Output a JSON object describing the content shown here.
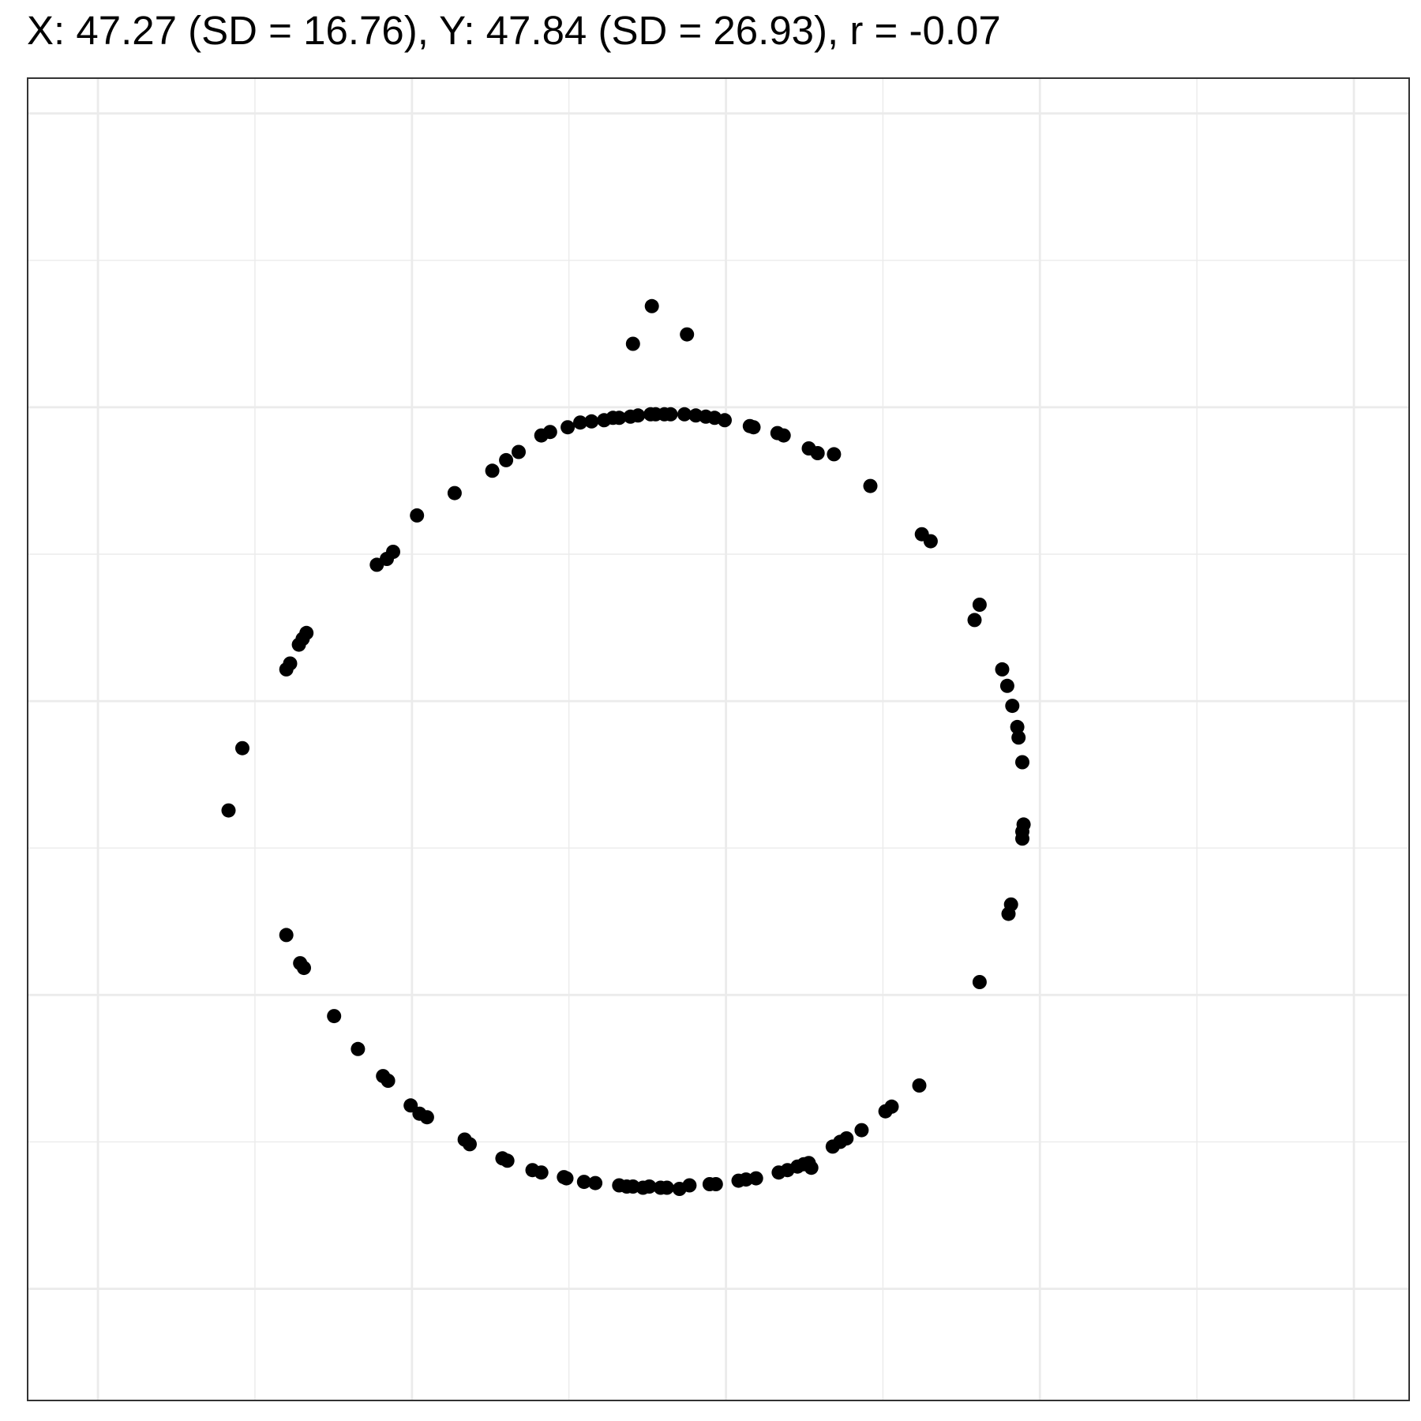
{
  "chart_data": {
    "type": "scatter",
    "title": "X: 47.27 (SD = 16.76), Y: 47.84 (SD = 26.93), r = -0.07",
    "xlabel": "",
    "ylabel": "",
    "xlim": [
      -5.6,
      104.4
    ],
    "ylim": [
      -9.5,
      103.0
    ],
    "grid": true,
    "axis_ticks_labeled": false,
    "colors": {
      "points": "#000000",
      "grid": "#ebebeb",
      "border": "#333333",
      "background": "#ffffff"
    },
    "points": [
      {
        "x": 44.1,
        "y": 83.6
      },
      {
        "x": 42.6,
        "y": 80.4
      },
      {
        "x": 46.9,
        "y": 81.2
      },
      {
        "x": 44.4,
        "y": 74.4
      },
      {
        "x": 44.0,
        "y": 74.4
      },
      {
        "x": 45.1,
        "y": 74.4
      },
      {
        "x": 45.6,
        "y": 74.4
      },
      {
        "x": 43.0,
        "y": 74.3
      },
      {
        "x": 42.4,
        "y": 74.2
      },
      {
        "x": 41.5,
        "y": 74.1
      },
      {
        "x": 41.0,
        "y": 74.1
      },
      {
        "x": 40.3,
        "y": 73.9
      },
      {
        "x": 39.3,
        "y": 73.8
      },
      {
        "x": 38.4,
        "y": 73.7
      },
      {
        "x": 37.4,
        "y": 73.3
      },
      {
        "x": 36.0,
        "y": 72.9
      },
      {
        "x": 35.3,
        "y": 72.6
      },
      {
        "x": 33.5,
        "y": 71.2
      },
      {
        "x": 32.5,
        "y": 70.5
      },
      {
        "x": 31.4,
        "y": 69.6
      },
      {
        "x": 28.4,
        "y": 67.7
      },
      {
        "x": 25.4,
        "y": 65.8
      },
      {
        "x": 23.5,
        "y": 62.7
      },
      {
        "x": 23.0,
        "y": 62.1
      },
      {
        "x": 22.2,
        "y": 61.6
      },
      {
        "x": 16.6,
        "y": 55.8
      },
      {
        "x": 16.3,
        "y": 55.3
      },
      {
        "x": 16.0,
        "y": 54.8
      },
      {
        "x": 15.3,
        "y": 53.2
      },
      {
        "x": 15.0,
        "y": 52.7
      },
      {
        "x": 11.5,
        "y": 46.0
      },
      {
        "x": 10.4,
        "y": 40.7
      },
      {
        "x": 15.0,
        "y": 30.1
      },
      {
        "x": 16.1,
        "y": 27.7
      },
      {
        "x": 16.4,
        "y": 27.3
      },
      {
        "x": 18.8,
        "y": 23.2
      },
      {
        "x": 20.7,
        "y": 20.4
      },
      {
        "x": 22.7,
        "y": 18.1
      },
      {
        "x": 23.1,
        "y": 17.7
      },
      {
        "x": 24.9,
        "y": 15.6
      },
      {
        "x": 25.6,
        "y": 14.9
      },
      {
        "x": 26.2,
        "y": 14.6
      },
      {
        "x": 29.2,
        "y": 12.7
      },
      {
        "x": 29.6,
        "y": 12.3
      },
      {
        "x": 32.2,
        "y": 11.1
      },
      {
        "x": 32.6,
        "y": 10.9
      },
      {
        "x": 34.6,
        "y": 10.1
      },
      {
        "x": 35.3,
        "y": 9.9
      },
      {
        "x": 37.1,
        "y": 9.5
      },
      {
        "x": 37.3,
        "y": 9.4
      },
      {
        "x": 38.7,
        "y": 9.1
      },
      {
        "x": 39.6,
        "y": 9.0
      },
      {
        "x": 41.5,
        "y": 8.8
      },
      {
        "x": 42.1,
        "y": 8.7
      },
      {
        "x": 42.6,
        "y": 8.7
      },
      {
        "x": 43.4,
        "y": 8.6
      },
      {
        "x": 43.9,
        "y": 8.7
      },
      {
        "x": 44.8,
        "y": 8.6
      },
      {
        "x": 45.3,
        "y": 8.6
      },
      {
        "x": 46.3,
        "y": 8.5
      },
      {
        "x": 47.1,
        "y": 8.8
      },
      {
        "x": 48.7,
        "y": 8.9
      },
      {
        "x": 49.2,
        "y": 8.9
      },
      {
        "x": 51.0,
        "y": 9.2
      },
      {
        "x": 51.6,
        "y": 9.3
      },
      {
        "x": 52.4,
        "y": 9.4
      },
      {
        "x": 54.2,
        "y": 9.9
      },
      {
        "x": 54.9,
        "y": 10.1
      },
      {
        "x": 55.7,
        "y": 10.4
      },
      {
        "x": 56.2,
        "y": 10.6
      },
      {
        "x": 56.6,
        "y": 10.7
      },
      {
        "x": 56.8,
        "y": 10.3
      },
      {
        "x": 58.5,
        "y": 12.1
      },
      {
        "x": 59.1,
        "y": 12.5
      },
      {
        "x": 59.6,
        "y": 12.8
      },
      {
        "x": 60.8,
        "y": 13.5
      },
      {
        "x": 62.7,
        "y": 15.1
      },
      {
        "x": 63.2,
        "y": 15.5
      },
      {
        "x": 65.4,
        "y": 17.3
      },
      {
        "x": 70.2,
        "y": 26.1
      },
      {
        "x": 72.5,
        "y": 31.9
      },
      {
        "x": 72.7,
        "y": 32.7
      },
      {
        "x": 73.6,
        "y": 38.3
      },
      {
        "x": 73.6,
        "y": 38.9
      },
      {
        "x": 73.7,
        "y": 39.5
      },
      {
        "x": 73.6,
        "y": 44.8
      },
      {
        "x": 73.3,
        "y": 46.9
      },
      {
        "x": 73.2,
        "y": 47.8
      },
      {
        "x": 72.8,
        "y": 49.6
      },
      {
        "x": 72.4,
        "y": 51.3
      },
      {
        "x": 72.0,
        "y": 52.7
      },
      {
        "x": 69.8,
        "y": 56.9
      },
      {
        "x": 70.2,
        "y": 58.2
      },
      {
        "x": 66.3,
        "y": 63.6
      },
      {
        "x": 65.6,
        "y": 64.2
      },
      {
        "x": 61.5,
        "y": 68.3
      },
      {
        "x": 58.6,
        "y": 71.0
      },
      {
        "x": 57.3,
        "y": 71.1
      },
      {
        "x": 56.6,
        "y": 71.5
      },
      {
        "x": 54.6,
        "y": 72.6
      },
      {
        "x": 54.1,
        "y": 72.8
      },
      {
        "x": 52.2,
        "y": 73.3
      },
      {
        "x": 51.9,
        "y": 73.4
      },
      {
        "x": 49.9,
        "y": 73.9
      },
      {
        "x": 49.1,
        "y": 74.1
      },
      {
        "x": 48.4,
        "y": 74.2
      },
      {
        "x": 47.6,
        "y": 74.3
      },
      {
        "x": 46.7,
        "y": 74.4
      }
    ],
    "x_gridlines": [
      0,
      25,
      50,
      75,
      100
    ],
    "y_gridlines": [
      0,
      25,
      50,
      75,
      100
    ],
    "x_minor_gridlines": [
      -12.5,
      12.5,
      37.5,
      62.5,
      87.5
    ],
    "y_minor_gridlines": [
      -12.5,
      12.5,
      37.5,
      62.5,
      87.5
    ]
  }
}
